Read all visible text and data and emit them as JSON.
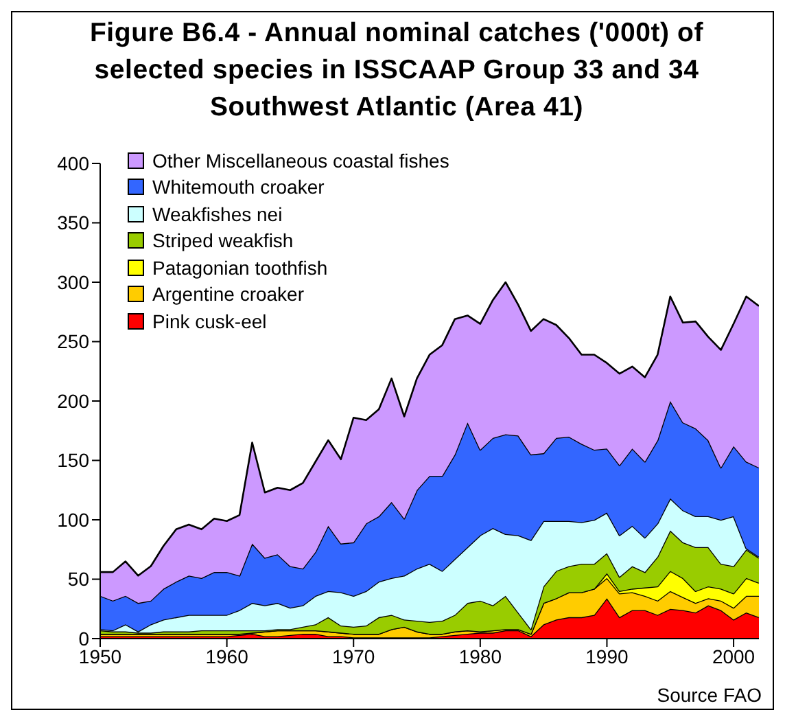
{
  "chart_data": {
    "type": "area",
    "stacked": true,
    "title": "Figure B6.4 - Annual nominal catches ('000t) of selected species in ISSCAAP Group 33 and 34 Southwest Atlantic (Area 41)",
    "annotations": [
      "Source FAO"
    ],
    "x": [
      1950,
      1951,
      1952,
      1953,
      1954,
      1955,
      1956,
      1957,
      1958,
      1959,
      1960,
      1961,
      1962,
      1963,
      1964,
      1965,
      1966,
      1967,
      1968,
      1969,
      1970,
      1971,
      1972,
      1973,
      1974,
      1975,
      1976,
      1977,
      1978,
      1979,
      1980,
      1981,
      1982,
      1983,
      1984,
      1985,
      1986,
      1987,
      1988,
      1989,
      1990,
      1991,
      1992,
      1993,
      1994,
      1995,
      1996,
      1997,
      1998,
      1999,
      2000,
      2001,
      2002
    ],
    "xlim": [
      1950,
      2002
    ],
    "xticks": [
      1950,
      1960,
      1970,
      1980,
      1990,
      2000
    ],
    "ylim": [
      0,
      400
    ],
    "yticks": [
      0,
      50,
      100,
      150,
      200,
      250,
      300,
      350,
      400
    ],
    "grid": false,
    "legend": "top left",
    "series": [
      {
        "name": "Pink cusk-eel",
        "color": "#ff0000",
        "values": [
          2,
          2,
          2,
          2,
          2,
          2,
          2,
          2,
          2,
          2,
          2,
          3,
          4,
          2,
          2,
          3,
          4,
          4,
          2,
          2,
          1,
          1,
          1,
          1,
          1,
          1,
          1,
          2,
          3,
          4,
          5,
          5,
          7,
          7,
          2,
          12,
          16,
          18,
          18,
          20,
          34,
          18,
          24,
          24,
          20,
          25,
          24,
          22,
          28,
          24,
          16,
          22,
          18
        ]
      },
      {
        "name": "Argentine croaker",
        "color": "#ffcc00",
        "values": [
          2,
          2,
          2,
          2,
          2,
          2,
          2,
          2,
          2,
          2,
          2,
          1,
          1,
          4,
          5,
          4,
          3,
          3,
          4,
          3,
          3,
          3,
          3,
          7,
          9,
          5,
          3,
          2,
          3,
          3,
          1,
          2,
          1,
          1,
          2,
          18,
          18,
          21,
          21,
          22,
          17,
          20,
          15,
          12,
          12,
          15,
          11,
          8,
          6,
          8,
          10,
          14,
          18
        ]
      },
      {
        "name": "Patagonian toothfish",
        "color": "#ffff00",
        "values": [
          0,
          0,
          0,
          0,
          0,
          0,
          0,
          0,
          0,
          0,
          0,
          0,
          0,
          0,
          0,
          0,
          0,
          0,
          0,
          0,
          0,
          0,
          0,
          0,
          0,
          0,
          0,
          0,
          0,
          0,
          0,
          0,
          0,
          0,
          0,
          0,
          0,
          0,
          0,
          0,
          4,
          2,
          3,
          7,
          12,
          17,
          16,
          10,
          10,
          10,
          12,
          15,
          11
        ]
      },
      {
        "name": "Striped weakfish",
        "color": "#99cc00",
        "values": [
          3,
          2,
          2,
          1,
          1,
          2,
          2,
          2,
          3,
          3,
          3,
          3,
          2,
          1,
          1,
          1,
          3,
          5,
          12,
          6,
          6,
          7,
          14,
          12,
          6,
          9,
          10,
          11,
          14,
          23,
          26,
          21,
          28,
          14,
          4,
          14,
          23,
          22,
          24,
          21,
          17,
          12,
          19,
          13,
          25,
          34,
          30,
          37,
          33,
          21,
          23,
          24,
          21
        ]
      },
      {
        "name": "Weakfishes nei",
        "color": "#ccffff",
        "values": [
          1,
          1,
          6,
          1,
          7,
          10,
          12,
          14,
          13,
          13,
          13,
          17,
          23,
          21,
          22,
          18,
          18,
          24,
          22,
          28,
          26,
          29,
          30,
          31,
          37,
          44,
          49,
          42,
          47,
          47,
          55,
          65,
          52,
          65,
          75,
          55,
          42,
          38,
          35,
          37,
          34,
          35,
          34,
          29,
          28,
          27,
          27,
          26,
          26,
          37,
          42,
          1,
          1
        ]
      },
      {
        "name": "Whitemouth croaker",
        "color": "#3366ff",
        "values": [
          28,
          25,
          24,
          24,
          20,
          26,
          30,
          33,
          31,
          36,
          36,
          29,
          50,
          40,
          41,
          35,
          31,
          37,
          55,
          41,
          45,
          57,
          55,
          64,
          48,
          66,
          74,
          80,
          88,
          105,
          72,
          76,
          84,
          84,
          72,
          57,
          70,
          71,
          66,
          59,
          54,
          59,
          65,
          64,
          70,
          82,
          74,
          74,
          64,
          44,
          59,
          73,
          75
        ]
      },
      {
        "name": "Other Miscellaneous coastal fishes",
        "color": "#cc99ff",
        "values": [
          20,
          24,
          29,
          23,
          29,
          36,
          44,
          43,
          41,
          45,
          43,
          51,
          85,
          55,
          56,
          64,
          72,
          76,
          72,
          71,
          105,
          87,
          90,
          104,
          86,
          94,
          102,
          110,
          114,
          90,
          106,
          116,
          128,
          110,
          104,
          113,
          95,
          83,
          75,
          80,
          72,
          77,
          69,
          71,
          72,
          88,
          84,
          90,
          87,
          99,
          103,
          139,
          136
        ]
      }
    ]
  }
}
